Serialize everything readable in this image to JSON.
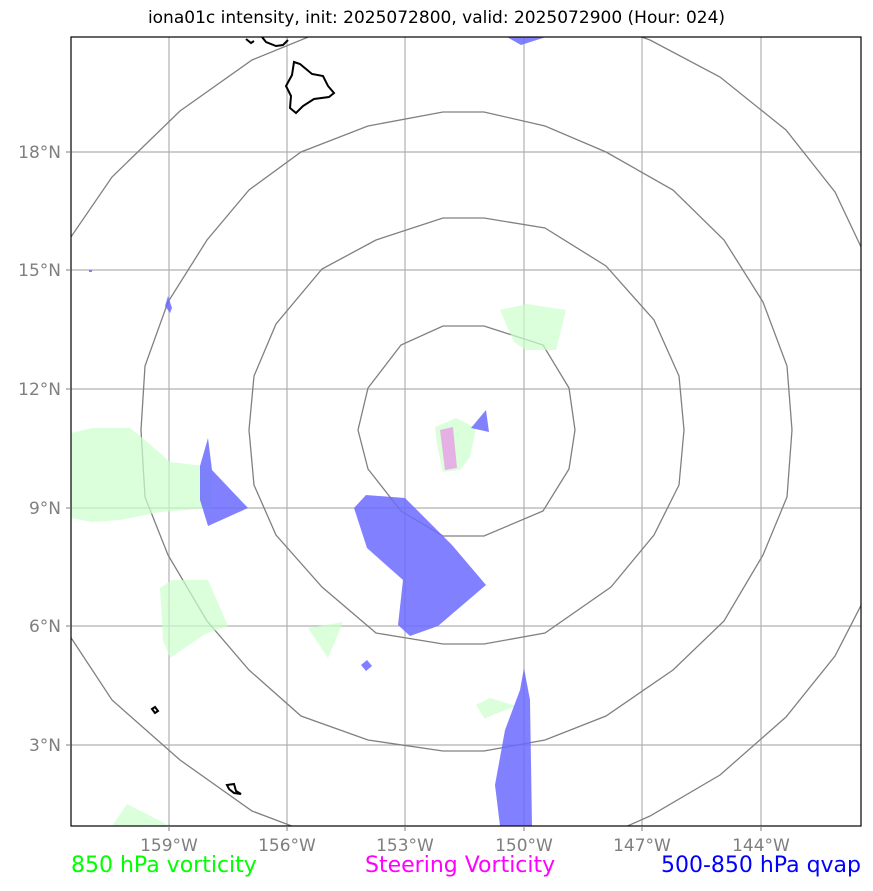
{
  "title": "iona01c intensity, init: 2025072800, valid: 2025072900 (Hour: 024)",
  "map": {
    "lon_ticks": [
      "159°W",
      "156°W",
      "153°W",
      "150°W",
      "147°W",
      "144°W"
    ],
    "lat_ticks": [
      "18°N",
      "15°N",
      "12°N",
      "9°N",
      "6°N",
      "3°N"
    ],
    "range_rings": 4,
    "colors": {
      "grid": "#b0b0b0",
      "rings": "#808080",
      "coast": "#000000",
      "vort850": "#ccffcc",
      "steering": "#e6a8e6",
      "qvap": "#6b6bff"
    }
  },
  "legend": {
    "vort850": {
      "label": "850 hPa vorticity",
      "color": "#00ff00"
    },
    "steering": {
      "label": "Steering Vorticity",
      "color": "#ff00ff"
    },
    "qvap": {
      "label": "500-850 hPa qvap",
      "color": "#0000ff"
    }
  }
}
